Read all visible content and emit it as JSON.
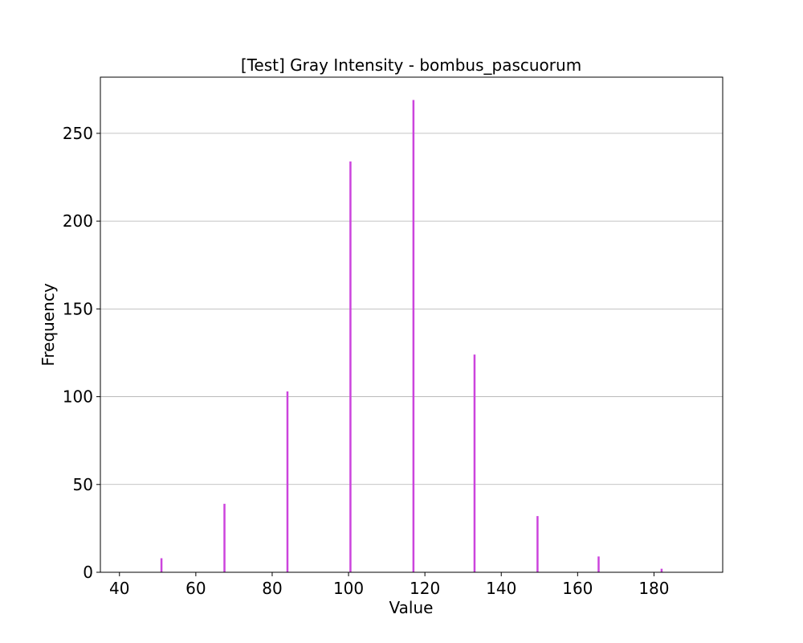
{
  "chart_data": {
    "type": "bar",
    "title": "[Test] Gray Intensity - bombus_pascuorum",
    "xlabel": "Value",
    "ylabel": "Frequency",
    "x": [
      51,
      67.5,
      84,
      100.5,
      117,
      133,
      149.5,
      165.5,
      182
    ],
    "values": [
      8,
      39,
      103,
      234,
      269,
      124,
      32,
      9,
      2
    ],
    "xlim": [
      35,
      198
    ],
    "ylim": [
      0,
      282
    ],
    "xticks": [
      40,
      60,
      80,
      100,
      120,
      140,
      160,
      180
    ],
    "yticks": [
      0,
      50,
      100,
      150,
      200,
      250
    ],
    "grid": "y-axis",
    "bar_color": "#cc44dd"
  }
}
